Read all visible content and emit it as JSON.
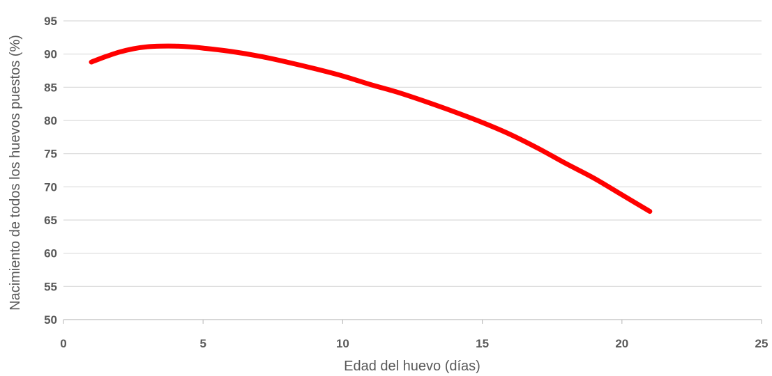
{
  "chart_data": {
    "type": "line",
    "title": "",
    "xlabel": "Edad del huevo (días)",
    "ylabel": "Nacimiento de todos los huevos puestos (%)",
    "xlim": [
      0,
      25
    ],
    "ylim": [
      50,
      95
    ],
    "xticks": [
      0,
      5,
      10,
      15,
      20,
      25
    ],
    "yticks": [
      50,
      55,
      60,
      65,
      70,
      75,
      80,
      85,
      90,
      95
    ],
    "grid": "horizontal",
    "legend": "none",
    "series": [
      {
        "color": "#ff0000",
        "x": [
          1,
          1.5,
          2,
          2.5,
          3,
          3.5,
          4,
          4.5,
          5,
          6,
          7,
          8,
          9,
          10,
          11,
          12,
          13,
          14,
          15,
          16,
          17,
          18,
          19,
          20,
          21
        ],
        "y": [
          88.8,
          89.6,
          90.3,
          90.8,
          91.1,
          91.2,
          91.2,
          91.1,
          90.9,
          90.4,
          89.7,
          88.8,
          87.8,
          86.7,
          85.4,
          84.2,
          82.8,
          81.3,
          79.7,
          77.9,
          75.8,
          73.5,
          71.3,
          68.8,
          66.3
        ]
      }
    ]
  }
}
